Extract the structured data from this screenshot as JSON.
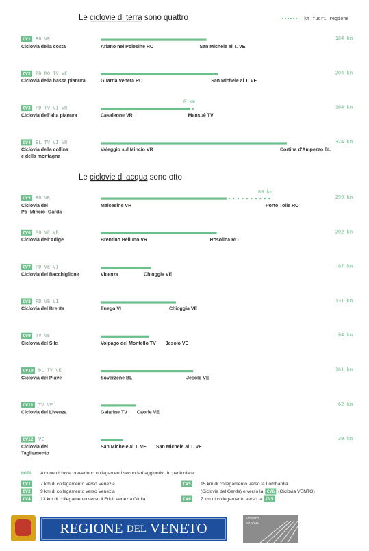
{
  "chart_data": [
    {
      "type": "bar",
      "title": [
        "Le ",
        "ciclovie di terra",
        " sono quattro"
      ],
      "legend": "km fuori regione",
      "color": "#6dbf8b",
      "categories": [
        "CV1",
        "CV2",
        "CV3",
        "CV4"
      ],
      "provinces": [
        "RO VE",
        "PD RO TV VE",
        "PD TV VI VR",
        "BL TV VI VR"
      ],
      "names": [
        [
          "Ciclovia della costa"
        ],
        [
          "Ciclovia della bassa pianura"
        ],
        [
          "Ciclovia dell'alta pianura"
        ],
        [
          "Ciclovia della collina",
          "e della montagna"
        ]
      ],
      "from": [
        "Ariano nel Polesine RO",
        "Guarda Veneta RO",
        "Casaleone VR",
        "Valeggio sul Mincio VR"
      ],
      "to": [
        "San Michele al T. VE",
        "San Michele al T. VE",
        "Mansuè TV",
        "Cortina d'Ampezzo BL"
      ],
      "values": [
        184,
        204,
        164,
        324
      ],
      "value_labels": [
        "184 km",
        "204 km",
        "164 km",
        "324 km"
      ],
      "outside": [
        null,
        null,
        8,
        null
      ],
      "outside_labels": [
        null,
        null,
        "8 km",
        null
      ]
    },
    {
      "type": "bar",
      "title": [
        "Le ",
        "ciclovie di acqua",
        " sono otto"
      ],
      "color": "#6dbf8b",
      "categories": [
        "CV5",
        "CV6",
        "CV7",
        "CV8",
        "CV9",
        "CV10",
        "CV11",
        "CV12"
      ],
      "provinces": [
        "RO VR",
        "RO VE VR",
        "PD VE VI",
        "PD VE VI",
        "TV VE",
        "BL TV VE",
        "TV VE",
        "VE"
      ],
      "names": [
        [
          "Ciclovia del",
          "Po–Mincio–Garda"
        ],
        [
          "Ciclovia dell'Adige"
        ],
        [
          "Ciclovia del Bacchiglione"
        ],
        [
          "Ciclovia del Brenta"
        ],
        [
          "Ciclovia del Sile"
        ],
        [
          "Ciclovia del Piave"
        ],
        [
          "Ciclovia del Livenza"
        ],
        [
          "Ciclovia del",
          "Tagliamento"
        ]
      ],
      "from": [
        "Malcesine VR",
        "Brentino Belluno VR",
        "Vicenza",
        "Enego VI",
        "Volpago del Montello TV",
        "Soverzene BL",
        "Gaiarine TV",
        "San Michele al T. VE"
      ],
      "to": [
        "Porto Tolle RO",
        "Rosolina RO",
        "Chioggia VE",
        "Chioggia VE",
        "Jesolo VE",
        "Jesolo VE",
        "Caorle VE",
        "San Michele al T. VE"
      ],
      "values": [
        299,
        202,
        87,
        131,
        84,
        161,
        62,
        39
      ],
      "value_labels": [
        "299 km",
        "202 km",
        "87 km",
        "131 km",
        "84 km",
        "161 km",
        "62 km",
        "39 km"
      ],
      "outside": [
        80,
        null,
        null,
        null,
        null,
        null,
        null,
        null
      ],
      "outside_labels": [
        "80 km",
        null,
        null,
        null,
        null,
        null,
        null,
        null
      ]
    }
  ],
  "notes": {
    "label": "NOTA",
    "intro": "Alcune ciclovie prevedono collegamenti secondari aggiuntivi. In particolare:",
    "items": [
      {
        "code": "CV1",
        "lines": [
          [
            "7 km di collegamento verso Venezia"
          ]
        ]
      },
      {
        "code": "CV2",
        "lines": [
          [
            "9 km di collegamento verso Venezia"
          ]
        ]
      },
      {
        "code": "CV4",
        "lines": [
          [
            "13 km di collegamento verso il Friuli Venezia Giulia"
          ]
        ]
      },
      {
        "code": "CV5",
        "lines": [
          [
            "15 km di collegamento verso la Lombardia"
          ],
          [
            "(Ciclovia del Garda) e verso la ",
            {
              "badge": "CV6"
            },
            " (Ciclovia VENTO)"
          ]
        ]
      },
      {
        "code": "CV6",
        "lines": [
          [
            "7 km di collegamento verso la ",
            {
              "badge": "CV5"
            }
          ]
        ]
      }
    ]
  },
  "footer": {
    "region": [
      "REGIONE ",
      "DEL",
      " VENETO"
    ],
    "strade": [
      "VENETO",
      "STRADE"
    ]
  }
}
